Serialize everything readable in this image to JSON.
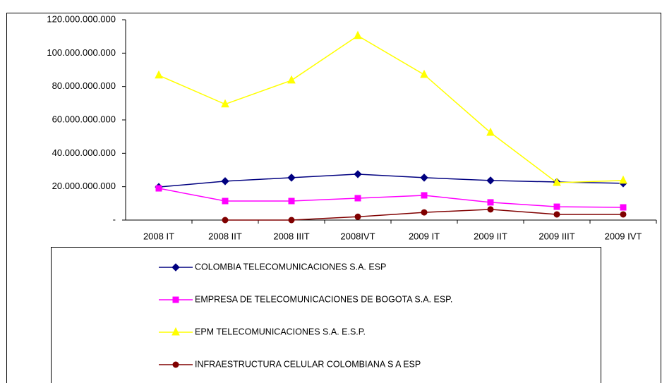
{
  "chart_data": {
    "type": "line",
    "categories": [
      "2008 IT",
      "2008 IIT",
      "2008 IIIT",
      "2008IVT",
      "2009 IT",
      "2009 IIT",
      "2009 IIIT",
      "2009 IVT"
    ],
    "series": [
      {
        "name": "COLOMBIA TELECOMUNICACIONES S.A. ESP",
        "color": "#000080",
        "marker": "diamond",
        "values": [
          19800000000,
          23300000000,
          25400000000,
          27500000000,
          25400000000,
          23700000000,
          22800000000,
          22000000000
        ]
      },
      {
        "name": "EMPRESA DE TELECOMUNICACIONES DE BOGOTA S.A. ESP.",
        "color": "#ff00ff",
        "marker": "square",
        "values": [
          19000000000,
          11400000000,
          11400000000,
          13100000000,
          14800000000,
          10600000000,
          8000000000,
          7600000000
        ]
      },
      {
        "name": "EPM TELECOMUNICACIONES S.A. E.S.P.",
        "color": "#ffff00",
        "marker": "triangle",
        "values": [
          86700000000,
          69400000000,
          83700000000,
          110400000000,
          87100000000,
          52400000000,
          22400000000,
          23700000000
        ]
      },
      {
        "name": "INFRAESTRUCTURA CELULAR COLOMBIANA S A ESP",
        "color": "#800000",
        "marker": "circle",
        "values": [
          null,
          0,
          0,
          2000000000,
          4600000000,
          6400000000,
          3400000000,
          3400000000
        ]
      }
    ],
    "ylim": [
      0,
      120000000000
    ],
    "yticks": [
      {
        "value": 0,
        "label": "-"
      },
      {
        "value": 20000000000,
        "label": "20.000.000.000"
      },
      {
        "value": 40000000000,
        "label": "40.000.000.000"
      },
      {
        "value": 60000000000,
        "label": "60.000.000.000"
      },
      {
        "value": 80000000000,
        "label": "80.000.000.000"
      },
      {
        "value": 100000000000,
        "label": "100.000.000.000"
      },
      {
        "value": 120000000000,
        "label": "120.000.000.000"
      }
    ],
    "grid": false,
    "legend": "bottom"
  }
}
